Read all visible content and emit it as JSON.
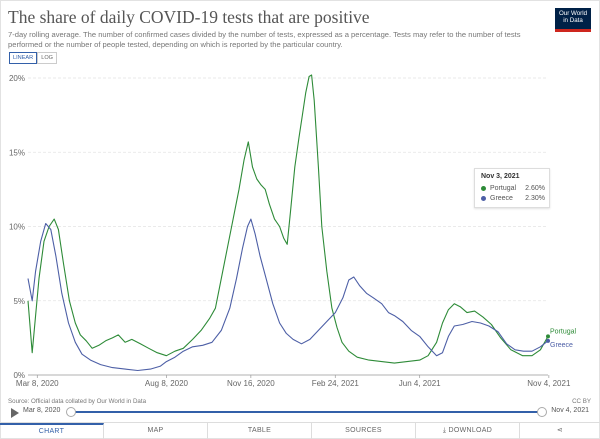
{
  "header": {
    "title": "The share of daily COVID-19 tests that are positive",
    "subtitle": "7-day rolling average. The number of confirmed cases divided by the number of tests, expressed as a percentage. Tests may refer to the number of tests performed or the number of people tested, depending on which is reported by the particular country.",
    "logo_line1": "Our World",
    "logo_line2": "in Data",
    "scale_linear": "LINEAR",
    "scale_log": "LOG"
  },
  "tooltip": {
    "date": "Nov 3, 2021",
    "rows": [
      {
        "name": "Portugal",
        "value": "2.60%"
      },
      {
        "name": "Greece",
        "value": "2.30%"
      }
    ]
  },
  "footer": {
    "source": "Source: Official data collated by Our World in Data",
    "license": "CC BY"
  },
  "timeline": {
    "start": "Mar 8, 2020",
    "end": "Nov 4, 2021"
  },
  "tabs": [
    "CHART",
    "MAP",
    "TABLE",
    "SOURCES",
    "DOWNLOAD",
    ""
  ],
  "colors": {
    "portugal": "#2e8b38",
    "greece": "#4d5fa6",
    "accent": "#3360a9",
    "grid": "#e4e4e4"
  },
  "chart_data": {
    "type": "line",
    "y_unit": "%",
    "ylim": [
      0,
      20
    ],
    "y_ticks": [
      "0%",
      "5%",
      "10%",
      "15%",
      "20%"
    ],
    "x_range": [
      "2020-02-26",
      "2021-11-03"
    ],
    "x_ticks": [
      {
        "date": "2020-03-08",
        "label": "Mar 8, 2020"
      },
      {
        "date": "2020-08-08",
        "label": "Aug 8, 2020"
      },
      {
        "date": "2020-11-16",
        "label": "Nov 16, 2020"
      },
      {
        "date": "2021-02-24",
        "label": "Feb 24, 2021"
      },
      {
        "date": "2021-06-04",
        "label": "Jun 4, 2021"
      },
      {
        "date": "2021-11-04",
        "label": "Nov 4, 2021"
      }
    ],
    "series": [
      {
        "name": "Portugal",
        "color": "#2e8b38",
        "points": [
          [
            "2020-02-26",
            5.0
          ],
          [
            "2020-03-02",
            1.5
          ],
          [
            "2020-03-06",
            4.0
          ],
          [
            "2020-03-10",
            6.5
          ],
          [
            "2020-03-16",
            9.0
          ],
          [
            "2020-03-22",
            10.0
          ],
          [
            "2020-03-28",
            10.5
          ],
          [
            "2020-04-02",
            9.8
          ],
          [
            "2020-04-08",
            7.5
          ],
          [
            "2020-04-15",
            5.0
          ],
          [
            "2020-04-22",
            3.5
          ],
          [
            "2020-04-28",
            2.7
          ],
          [
            "2020-05-05",
            2.3
          ],
          [
            "2020-05-12",
            1.8
          ],
          [
            "2020-05-20",
            2.0
          ],
          [
            "2020-05-28",
            2.3
          ],
          [
            "2020-06-05",
            2.5
          ],
          [
            "2020-06-12",
            2.7
          ],
          [
            "2020-06-20",
            2.2
          ],
          [
            "2020-06-28",
            2.4
          ],
          [
            "2020-07-08",
            2.1
          ],
          [
            "2020-07-18",
            1.8
          ],
          [
            "2020-07-28",
            1.5
          ],
          [
            "2020-08-08",
            1.3
          ],
          [
            "2020-08-18",
            1.6
          ],
          [
            "2020-08-28",
            1.8
          ],
          [
            "2020-09-08",
            2.4
          ],
          [
            "2020-09-18",
            3.0
          ],
          [
            "2020-09-28",
            3.8
          ],
          [
            "2020-10-05",
            4.5
          ],
          [
            "2020-10-12",
            6.5
          ],
          [
            "2020-10-19",
            8.5
          ],
          [
            "2020-10-26",
            10.5
          ],
          [
            "2020-11-02",
            12.5
          ],
          [
            "2020-11-08",
            14.5
          ],
          [
            "2020-11-13",
            15.7
          ],
          [
            "2020-11-18",
            14.0
          ],
          [
            "2020-11-23",
            13.2
          ],
          [
            "2020-11-28",
            12.8
          ],
          [
            "2020-12-03",
            12.5
          ],
          [
            "2020-12-08",
            11.5
          ],
          [
            "2020-12-14",
            10.5
          ],
          [
            "2020-12-20",
            10.0
          ],
          [
            "2020-12-25",
            9.2
          ],
          [
            "2020-12-29",
            8.8
          ],
          [
            "2021-01-02",
            11.0
          ],
          [
            "2021-01-07",
            14.0
          ],
          [
            "2021-01-12",
            16.0
          ],
          [
            "2021-01-16",
            17.5
          ],
          [
            "2021-01-20",
            19.0
          ],
          [
            "2021-01-24",
            20.1
          ],
          [
            "2021-01-27",
            20.2
          ],
          [
            "2021-01-30",
            18.5
          ],
          [
            "2021-02-04",
            14.0
          ],
          [
            "2021-02-08",
            10.0
          ],
          [
            "2021-02-14",
            7.0
          ],
          [
            "2021-02-20",
            4.5
          ],
          [
            "2021-02-26",
            3.2
          ],
          [
            "2021-03-04",
            2.2
          ],
          [
            "2021-03-12",
            1.6
          ],
          [
            "2021-03-22",
            1.2
          ],
          [
            "2021-04-05",
            1.0
          ],
          [
            "2021-04-20",
            0.9
          ],
          [
            "2021-05-05",
            0.8
          ],
          [
            "2021-05-20",
            0.9
          ],
          [
            "2021-06-04",
            1.0
          ],
          [
            "2021-06-14",
            1.3
          ],
          [
            "2021-06-24",
            2.2
          ],
          [
            "2021-07-01",
            3.5
          ],
          [
            "2021-07-08",
            4.4
          ],
          [
            "2021-07-15",
            4.8
          ],
          [
            "2021-07-22",
            4.6
          ],
          [
            "2021-07-30",
            4.2
          ],
          [
            "2021-08-08",
            4.3
          ],
          [
            "2021-08-18",
            3.9
          ],
          [
            "2021-08-28",
            3.4
          ],
          [
            "2021-09-08",
            2.5
          ],
          [
            "2021-09-20",
            1.7
          ],
          [
            "2021-10-04",
            1.3
          ],
          [
            "2021-10-15",
            1.3
          ],
          [
            "2021-10-25",
            1.7
          ],
          [
            "2021-11-03",
            2.6
          ]
        ]
      },
      {
        "name": "Greece",
        "color": "#4d5fa6",
        "points": [
          [
            "2020-02-26",
            6.5
          ],
          [
            "2020-03-02",
            5.0
          ],
          [
            "2020-03-06",
            7.0
          ],
          [
            "2020-03-12",
            9.0
          ],
          [
            "2020-03-18",
            10.2
          ],
          [
            "2020-03-24",
            9.8
          ],
          [
            "2020-03-30",
            8.0
          ],
          [
            "2020-04-06",
            5.5
          ],
          [
            "2020-04-14",
            3.5
          ],
          [
            "2020-04-22",
            2.2
          ],
          [
            "2020-04-30",
            1.4
          ],
          [
            "2020-05-10",
            1.0
          ],
          [
            "2020-05-22",
            0.7
          ],
          [
            "2020-06-05",
            0.5
          ],
          [
            "2020-06-20",
            0.4
          ],
          [
            "2020-07-05",
            0.3
          ],
          [
            "2020-07-20",
            0.4
          ],
          [
            "2020-08-01",
            0.6
          ],
          [
            "2020-08-08",
            0.9
          ],
          [
            "2020-08-18",
            1.2
          ],
          [
            "2020-08-28",
            1.6
          ],
          [
            "2020-09-08",
            1.9
          ],
          [
            "2020-09-20",
            2.0
          ],
          [
            "2020-10-01",
            2.2
          ],
          [
            "2020-10-12",
            3.0
          ],
          [
            "2020-10-22",
            4.5
          ],
          [
            "2020-10-30",
            6.5
          ],
          [
            "2020-11-06",
            8.5
          ],
          [
            "2020-11-12",
            10.0
          ],
          [
            "2020-11-16",
            10.5
          ],
          [
            "2020-11-21",
            9.5
          ],
          [
            "2020-11-27",
            8.0
          ],
          [
            "2020-12-04",
            6.5
          ],
          [
            "2020-12-12",
            4.8
          ],
          [
            "2020-12-20",
            3.5
          ],
          [
            "2020-12-28",
            2.8
          ],
          [
            "2021-01-05",
            2.4
          ],
          [
            "2021-01-15",
            2.1
          ],
          [
            "2021-01-25",
            2.4
          ],
          [
            "2021-02-04",
            3.0
          ],
          [
            "2021-02-14",
            3.6
          ],
          [
            "2021-02-24",
            4.2
          ],
          [
            "2021-03-05",
            5.2
          ],
          [
            "2021-03-12",
            6.4
          ],
          [
            "2021-03-18",
            6.6
          ],
          [
            "2021-03-25",
            6.0
          ],
          [
            "2021-04-02",
            5.5
          ],
          [
            "2021-04-10",
            5.2
          ],
          [
            "2021-04-20",
            4.8
          ],
          [
            "2021-04-28",
            4.2
          ],
          [
            "2021-05-05",
            4.0
          ],
          [
            "2021-05-15",
            3.6
          ],
          [
            "2021-05-25",
            3.0
          ],
          [
            "2021-06-04",
            2.6
          ],
          [
            "2021-06-14",
            1.9
          ],
          [
            "2021-06-24",
            1.3
          ],
          [
            "2021-07-01",
            1.5
          ],
          [
            "2021-07-08",
            2.6
          ],
          [
            "2021-07-15",
            3.3
          ],
          [
            "2021-07-25",
            3.4
          ],
          [
            "2021-08-05",
            3.6
          ],
          [
            "2021-08-15",
            3.5
          ],
          [
            "2021-08-25",
            3.3
          ],
          [
            "2021-09-05",
            2.9
          ],
          [
            "2021-09-15",
            2.1
          ],
          [
            "2021-09-25",
            1.7
          ],
          [
            "2021-10-05",
            1.6
          ],
          [
            "2021-10-15",
            1.6
          ],
          [
            "2021-10-25",
            1.9
          ],
          [
            "2021-11-03",
            2.3
          ]
        ]
      }
    ]
  }
}
